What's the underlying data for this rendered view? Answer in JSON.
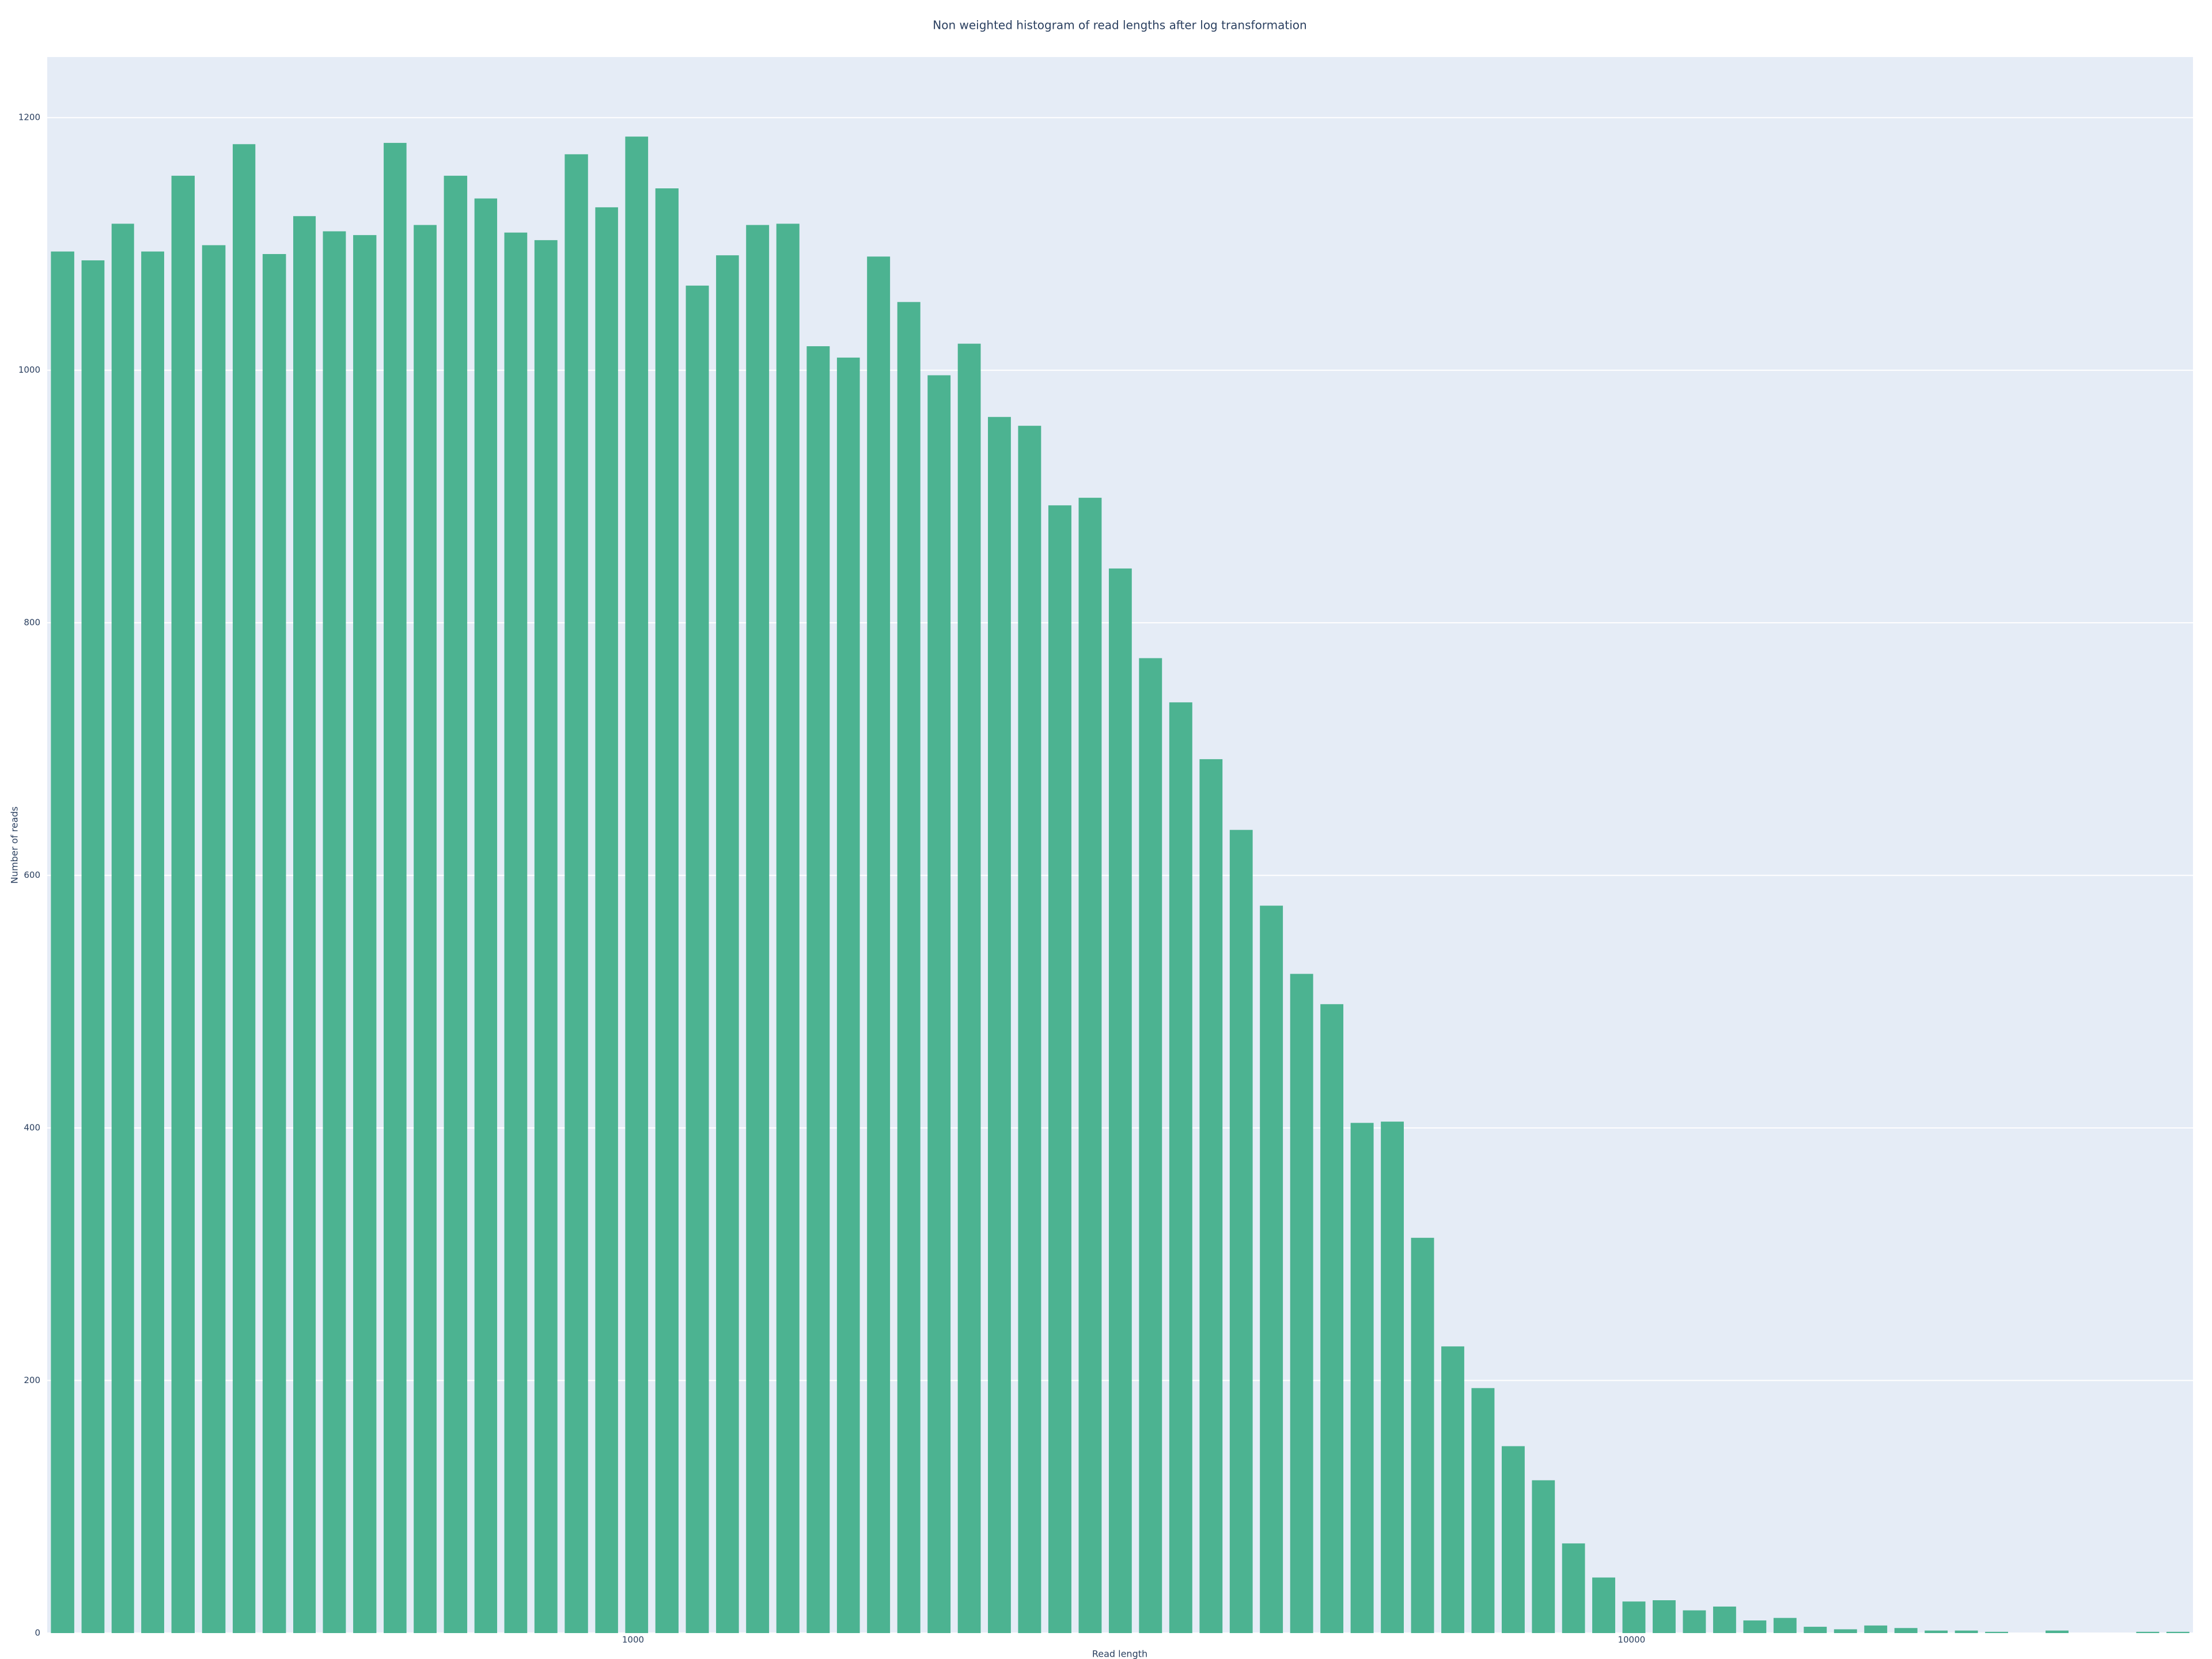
{
  "chart_data": {
    "type": "histogram",
    "title": "Non weighted histogram of read lengths after log transformation",
    "x_label": "Read length",
    "y_label": "Number of reads",
    "bins": [
      259,
      278,
      298,
      319,
      342,
      367,
      394,
      422,
      453,
      485,
      520,
      558,
      598,
      641,
      688,
      737,
      790,
      847,
      909,
      974,
      1044,
      1120,
      1201,
      1287,
      1380,
      1480,
      1587,
      1701,
      1824,
      1956,
      2097,
      2248,
      2410,
      2584,
      2771,
      2971,
      3185,
      3415,
      3662,
      3926,
      4209,
      4513,
      4839,
      5188,
      5563,
      5964,
      6395,
      6856,
      7351,
      7882,
      8449,
      9057,
      9711,
      10412,
      11163,
      11969,
      12833,
      13759,
      14752,
      15817,
      16960,
      18183,
      19496,
      20903,
      22412,
      24029,
      25764,
      27623,
      29617,
      31755,
      34047,
      36500
    ],
    "values": [
      1094,
      1087,
      1116,
      1094,
      1154,
      1099,
      1179,
      1092,
      1122,
      1110,
      1107,
      1180,
      1115,
      1154,
      1136,
      1109,
      1103,
      1171,
      1129,
      1185,
      1144,
      1067,
      1091,
      1115,
      1116,
      1019,
      1010,
      1090,
      1054,
      996,
      1021,
      963,
      956,
      893,
      899,
      843,
      772,
      737,
      692,
      636,
      576,
      522,
      498,
      404,
      405,
      313,
      227,
      194,
      148,
      121,
      71,
      44,
      25,
      26,
      18,
      21,
      10,
      12,
      5,
      3,
      6,
      4,
      2,
      2,
      1,
      0,
      2,
      0,
      0,
      1,
      1
    ],
    "color": "#4cb391",
    "xlim": [
      259,
      36500
    ],
    "x_log": true,
    "xticks": [
      1000,
      10000
    ],
    "ylim": [
      0,
      1248
    ],
    "yticks": [
      0,
      200,
      400,
      600,
      800,
      1000,
      1200
    ],
    "grid": true
  }
}
